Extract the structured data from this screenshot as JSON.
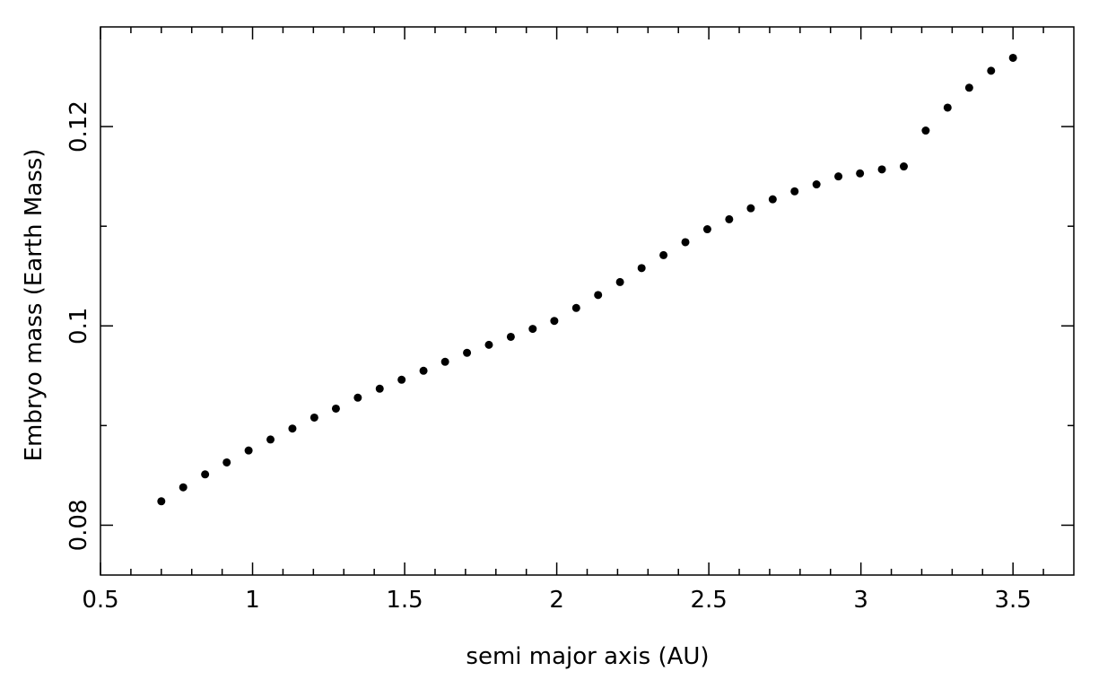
{
  "chart_data": {
    "type": "scatter",
    "xlabel": "semi major axis (AU)",
    "ylabel": "Embryo mass (Earth Mass)",
    "color": "#000000",
    "x": [
      0.7,
      0.772,
      0.844,
      0.915,
      0.987,
      1.059,
      1.131,
      1.203,
      1.274,
      1.346,
      1.418,
      1.49,
      1.562,
      1.633,
      1.705,
      1.777,
      1.849,
      1.921,
      1.992,
      2.064,
      2.136,
      2.208,
      2.279,
      2.351,
      2.423,
      2.495,
      2.567,
      2.638,
      2.71,
      2.782,
      2.854,
      2.926,
      2.997,
      3.069,
      3.141,
      3.213,
      3.285,
      3.356,
      3.428,
      3.5
    ],
    "values": [
      0.0824,
      0.0838,
      0.0851,
      0.0863,
      0.0875,
      0.0886,
      0.0897,
      0.0908,
      0.0917,
      0.0928,
      0.0937,
      0.0946,
      0.0955,
      0.0964,
      0.0973,
      0.0981,
      0.0989,
      0.0997,
      0.1005,
      0.1018,
      0.1031,
      0.1044,
      0.1058,
      0.1071,
      0.1084,
      0.1097,
      0.1107,
      0.1118,
      0.1127,
      0.1135,
      0.1142,
      0.115,
      0.1153,
      0.1157,
      0.116,
      0.1196,
      0.1219,
      0.1239,
      0.1256,
      0.1269
    ],
    "xlim": [
      0.5,
      3.7
    ],
    "ylim": [
      0.075,
      0.13
    ],
    "xticks": [
      0.5,
      1,
      1.5,
      2,
      2.5,
      3,
      3.5
    ],
    "yticks": [
      0.08,
      0.1,
      0.12
    ],
    "xminorticks": [
      0.6,
      0.7,
      0.8,
      0.9,
      1.1,
      1.2,
      1.3,
      1.4,
      1.6,
      1.7,
      1.8,
      1.9,
      2.1,
      2.2,
      2.3,
      2.4,
      2.6,
      2.7,
      2.8,
      2.9,
      3.1,
      3.2,
      3.3,
      3.4,
      3.6
    ],
    "yminorticks": [
      0.09,
      0.11
    ]
  }
}
